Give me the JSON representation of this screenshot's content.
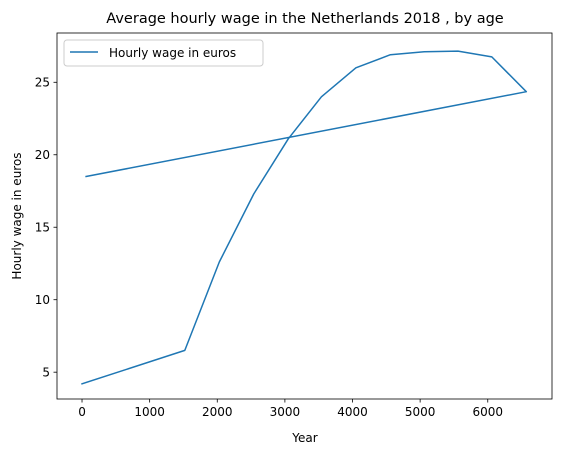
{
  "chart_data": {
    "type": "line",
    "title": "Average hourly wage in the Netherlands 2018 , by age",
    "xlabel": "Year",
    "ylabel": "Hourly wage in euros",
    "xlim": [
      -370,
      6950
    ],
    "ylim": [
      3.15,
      28.4
    ],
    "xticks": [
      0,
      1000,
      2000,
      3000,
      4000,
      5000,
      6000
    ],
    "yticks": [
      5,
      10,
      15,
      20,
      25
    ],
    "grid": false,
    "legend_position": "upper-left",
    "series": [
      {
        "name": "Hourly wage in euros",
        "color": "#1f77b4",
        "x": [
          0,
          1520,
          2030,
          2540,
          3050,
          3540,
          4050,
          4560,
          5060,
          5560,
          6060,
          6570,
          60
        ],
        "y": [
          4.2,
          6.5,
          12.6,
          17.3,
          21.1,
          24.0,
          26.0,
          26.9,
          27.1,
          27.15,
          26.75,
          24.35,
          18.5
        ]
      }
    ]
  }
}
